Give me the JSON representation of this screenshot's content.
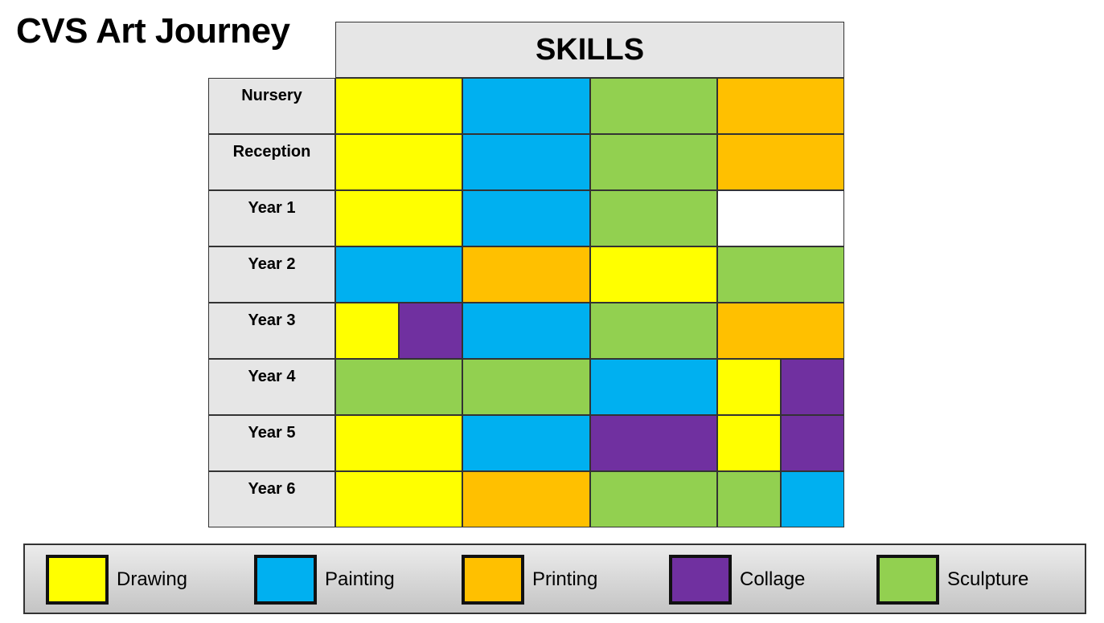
{
  "title": "CVS Art Journey",
  "header": "SKILLS",
  "colors": {
    "drawing": "#ffff00",
    "painting": "#00b0f0",
    "printing": "#ffc000",
    "collage": "#7030a0",
    "sculpture": "#92d050",
    "empty": "#ffffff"
  },
  "rows": [
    {
      "label": "Nursery",
      "cells": [
        [
          "drawing",
          2
        ],
        [
          "painting",
          2
        ],
        [
          "sculpture",
          2
        ],
        [
          "printing",
          2
        ]
      ]
    },
    {
      "label": "Reception",
      "cells": [
        [
          "drawing",
          2
        ],
        [
          "painting",
          2
        ],
        [
          "sculpture",
          2
        ],
        [
          "printing",
          2
        ]
      ]
    },
    {
      "label": "Year 1",
      "cells": [
        [
          "drawing",
          2
        ],
        [
          "painting",
          2
        ],
        [
          "sculpture",
          2
        ],
        [
          "empty",
          2
        ]
      ]
    },
    {
      "label": "Year 2",
      "cells": [
        [
          "painting",
          2
        ],
        [
          "printing",
          2
        ],
        [
          "drawing",
          2
        ],
        [
          "sculpture",
          2
        ]
      ]
    },
    {
      "label": "Year 3",
      "cells": [
        [
          "drawing",
          1
        ],
        [
          "collage",
          1
        ],
        [
          "painting",
          2
        ],
        [
          "sculpture",
          2
        ],
        [
          "printing",
          2
        ]
      ]
    },
    {
      "label": "Year 4",
      "cells": [
        [
          "sculpture",
          2
        ],
        [
          "sculpture",
          2
        ],
        [
          "painting",
          2
        ],
        [
          "drawing",
          1
        ],
        [
          "collage",
          1
        ]
      ]
    },
    {
      "label": "Year 5",
      "cells": [
        [
          "drawing",
          2
        ],
        [
          "painting",
          2
        ],
        [
          "collage",
          2
        ],
        [
          "drawing",
          1
        ],
        [
          "collage",
          1
        ]
      ]
    },
    {
      "label": "Year 6",
      "cells": [
        [
          "drawing",
          2
        ],
        [
          "printing",
          2
        ],
        [
          "sculpture",
          2
        ],
        [
          "sculpture",
          1
        ],
        [
          "painting",
          1
        ]
      ]
    }
  ],
  "legend": [
    {
      "key": "drawing",
      "label": "Drawing"
    },
    {
      "key": "painting",
      "label": "Painting"
    },
    {
      "key": "printing",
      "label": "Printing"
    },
    {
      "key": "collage",
      "label": "Collage"
    },
    {
      "key": "sculpture",
      "label": "Sculpture"
    }
  ]
}
